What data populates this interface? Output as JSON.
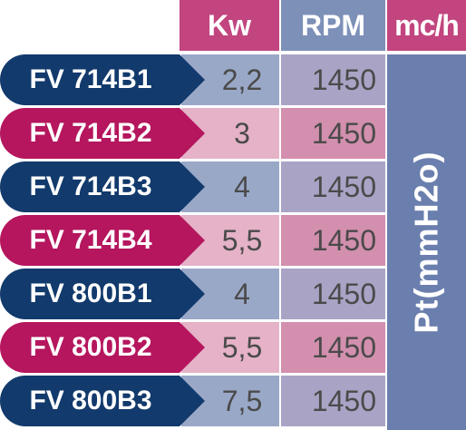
{
  "header": {
    "kw": "Kw",
    "rpm": "RPM",
    "mch": "mc/h"
  },
  "pt_label": "Pt(mmH2o)",
  "colors": {
    "navy": "#123a6c",
    "magenta": "#b5165e",
    "header_pink": "#c2457f",
    "header_blue": "#7d90b8",
    "kw_blue": "#9aa8c8",
    "kw_pink": "#e5b2c8",
    "rpm_blue": "#a9a4c6",
    "rpm_pink": "#d38fae",
    "pt_column": "#6b7fae"
  },
  "rows": [
    {
      "model": "FV 714B1",
      "kw": "2,2",
      "rpm": "1450",
      "theme": "blue"
    },
    {
      "model": "FV 714B2",
      "kw": "3",
      "rpm": "1450",
      "theme": "pink"
    },
    {
      "model": "FV 714B3",
      "kw": "4",
      "rpm": "1450",
      "theme": "blue"
    },
    {
      "model": "FV 714B4",
      "kw": "5,5",
      "rpm": "1450",
      "theme": "pink"
    },
    {
      "model": "FV 800B1",
      "kw": "4",
      "rpm": "1450",
      "theme": "blue"
    },
    {
      "model": "FV 800B2",
      "kw": "5,5",
      "rpm": "1450",
      "theme": "pink"
    },
    {
      "model": "FV 800B3",
      "kw": "7,5",
      "rpm": "1450",
      "theme": "blue"
    }
  ]
}
